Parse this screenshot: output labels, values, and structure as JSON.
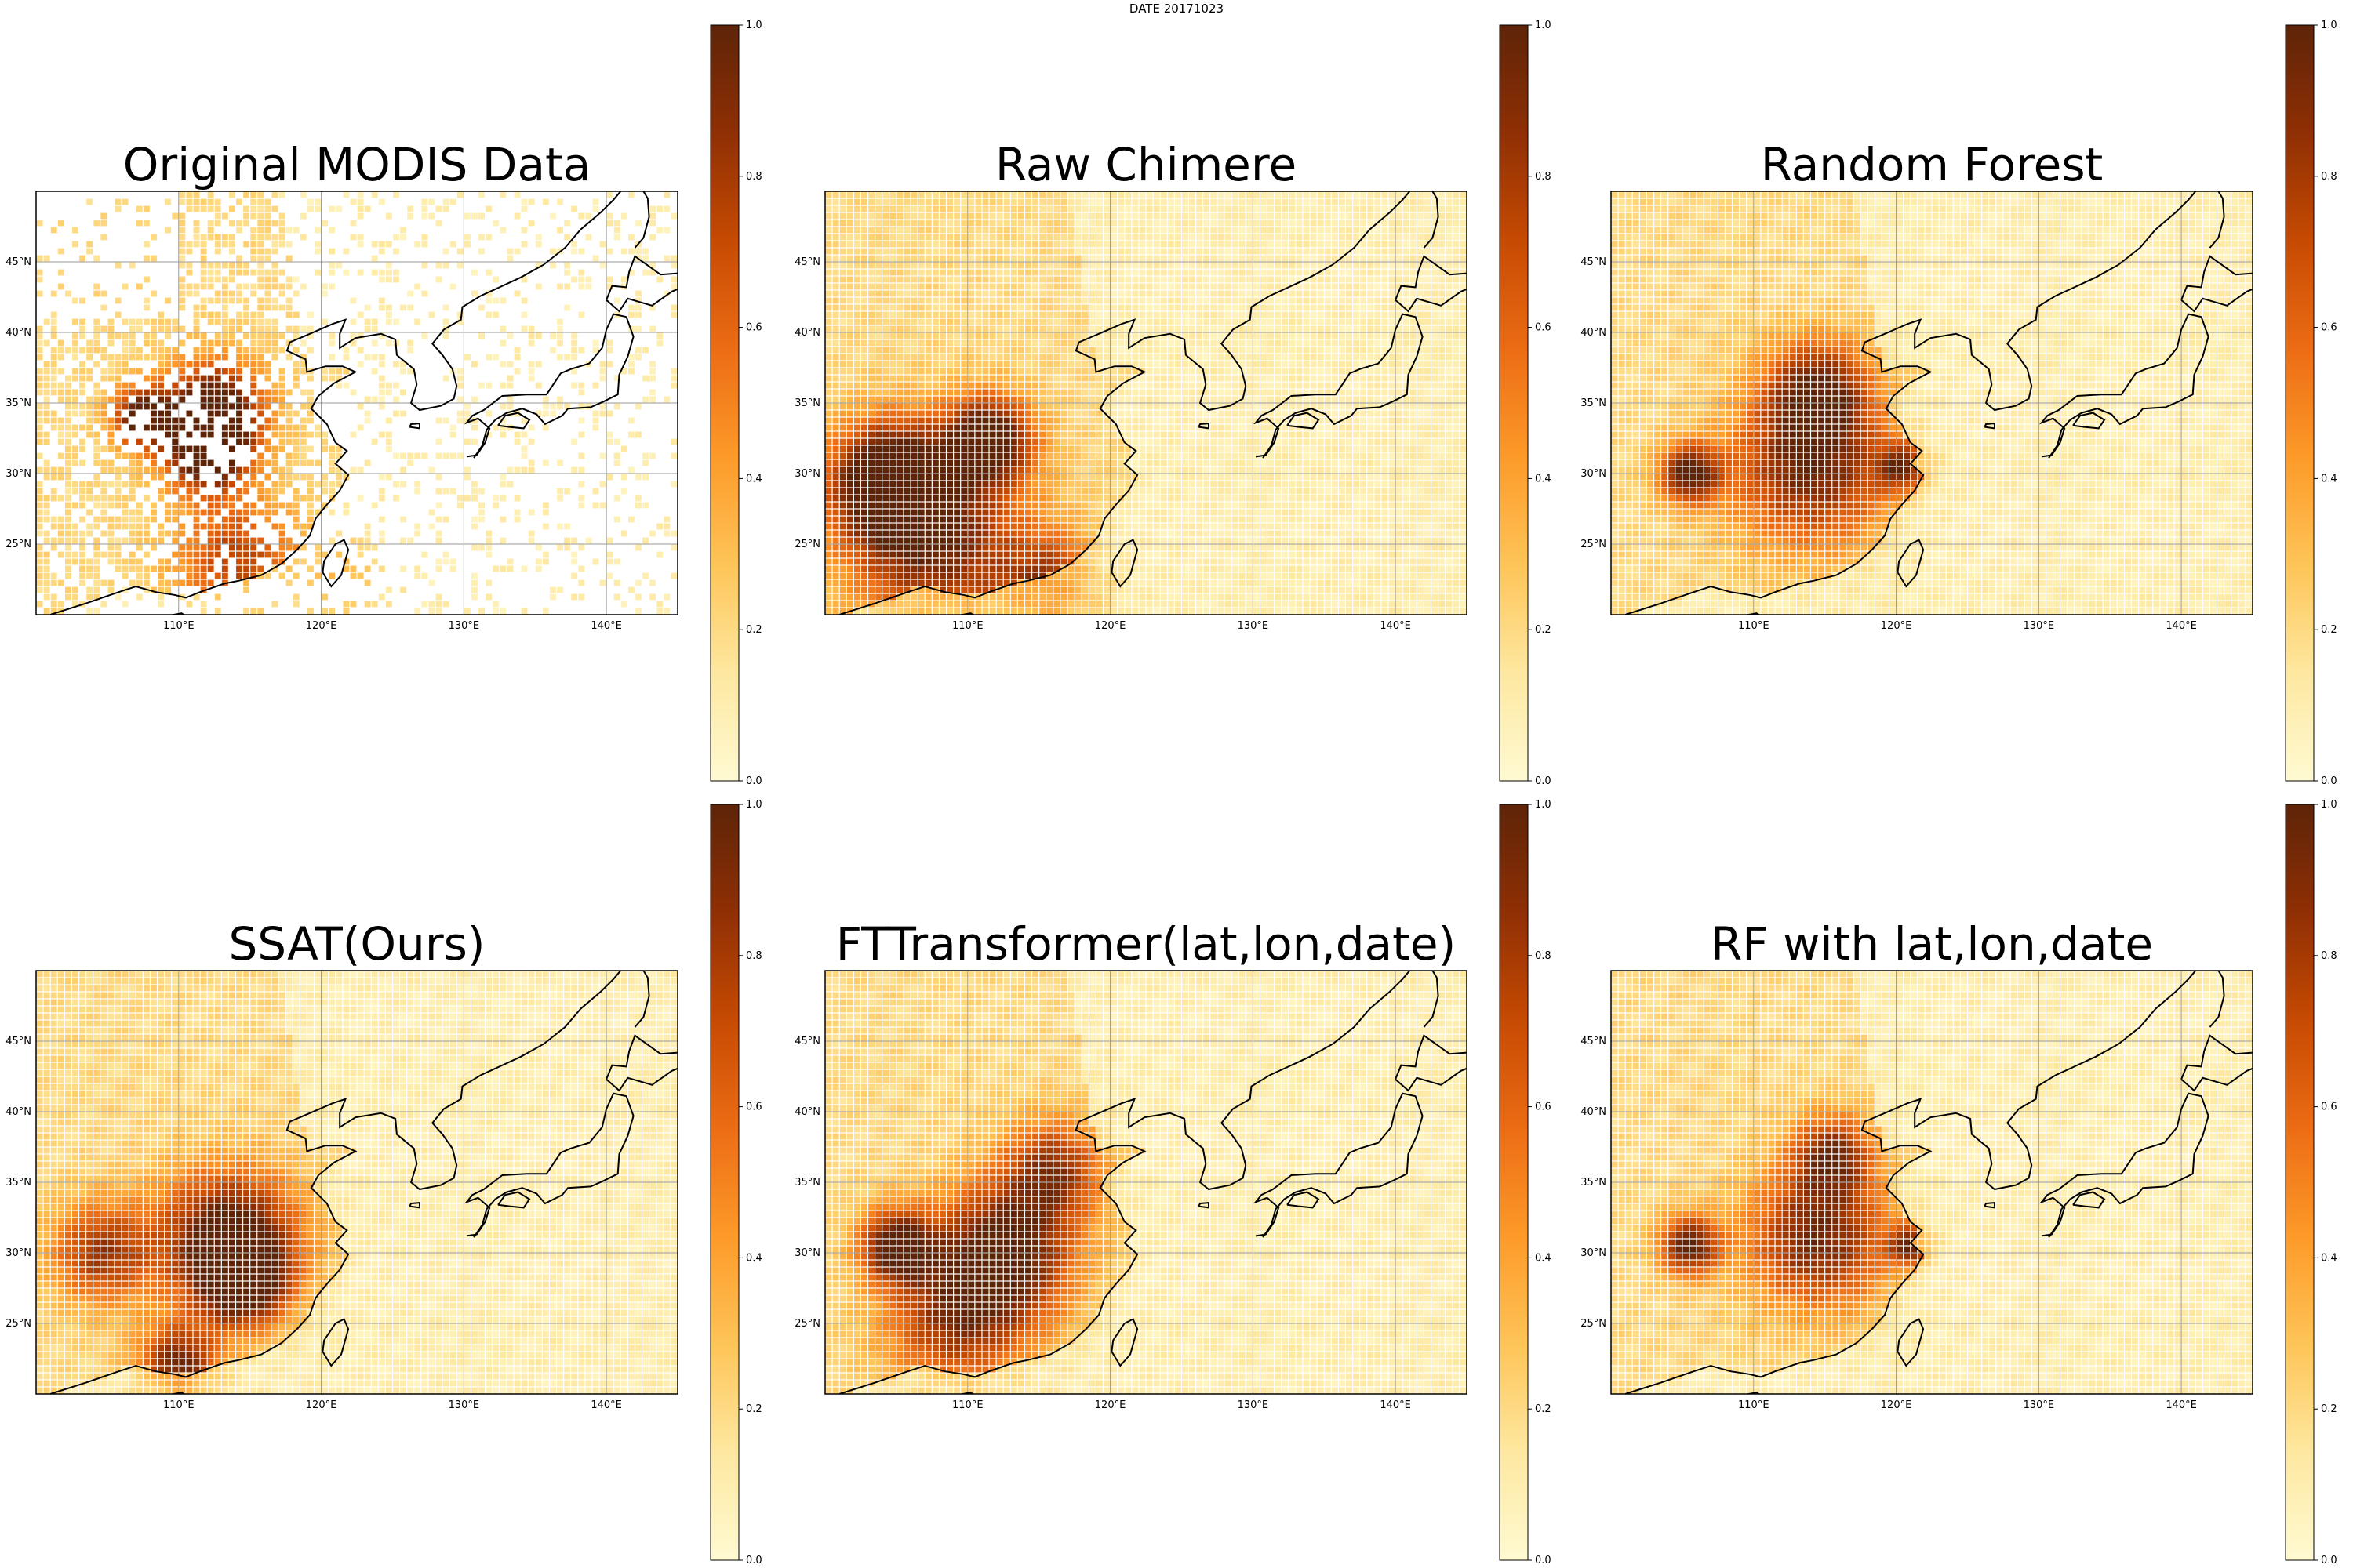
{
  "figure": {
    "suptitle": "DATE 20171023"
  },
  "colors": {
    "cmap": [
      "#fffad2",
      "#fee8a0",
      "#fec457",
      "#fd9a29",
      "#ec6c14",
      "#c64a02",
      "#8f2f04",
      "#5e2408"
    ],
    "coast": "#000000",
    "grid": "#9a9a9a"
  },
  "chart_data": [
    {
      "type": "heatmap",
      "title": "Original MODIS Data",
      "key": "modis",
      "xlim": [
        100,
        145
      ],
      "ylim": [
        20,
        50
      ],
      "xticks": [
        "110°E",
        "120°E",
        "130°E",
        "140°E"
      ],
      "yticks": [
        "45°N",
        "40°N",
        "35°N",
        "30°N",
        "25°N"
      ],
      "colorbar": {
        "vmin": 0,
        "vmax": 1,
        "ticks": [
          "0.0",
          "0.2",
          "0.4",
          "0.6",
          "0.8",
          "1.0"
        ]
      },
      "grid": true,
      "hotspots": [
        {
          "lon": 112.5,
          "lat": 34.5,
          "value": 0.98,
          "spread": 2.4
        },
        {
          "lon": 107.5,
          "lat": 34.0,
          "value": 0.9,
          "spread": 1.5
        },
        {
          "lon": 112.0,
          "lat": 31.5,
          "value": 0.85,
          "spread": 2.0
        },
        {
          "lon": 114.0,
          "lat": 24.0,
          "value": 0.55,
          "spread": 3.0
        },
        {
          "lon": 121.5,
          "lat": 22.5,
          "value": 0.5,
          "spread": 2.0
        }
      ],
      "missing_data": true
    },
    {
      "type": "heatmap",
      "title": "Raw Chimere",
      "key": "chimere",
      "xlim": [
        100,
        145
      ],
      "ylim": [
        20,
        50
      ],
      "xticks": [
        "110°E",
        "120°E",
        "130°E",
        "140°E"
      ],
      "yticks": [
        "45°N",
        "40°N",
        "35°N",
        "30°N",
        "25°N"
      ],
      "colorbar": {
        "vmin": 0,
        "vmax": 1,
        "ticks": [
          "0.0",
          "0.2",
          "0.4",
          "0.6",
          "0.8",
          "1.0"
        ]
      },
      "grid": true,
      "hotspots": [
        {
          "lon": 104.5,
          "lat": 29.5,
          "value": 0.95,
          "spread": 3.0
        },
        {
          "lon": 111.5,
          "lat": 32.5,
          "value": 0.9,
          "spread": 2.2
        },
        {
          "lon": 108.0,
          "lat": 25.0,
          "value": 0.7,
          "spread": 4.5
        },
        {
          "lon": 116.0,
          "lat": 22.0,
          "value": 0.55,
          "spread": 2.5
        }
      ],
      "missing_data": false
    },
    {
      "type": "heatmap",
      "title": "Random Forest",
      "key": "rf",
      "xlim": [
        100,
        145
      ],
      "ylim": [
        20,
        50
      ],
      "xticks": [
        "110°E",
        "120°E",
        "130°E",
        "140°E"
      ],
      "yticks": [
        "45°N",
        "40°N",
        "35°N",
        "30°N",
        "25°N"
      ],
      "colorbar": {
        "vmin": 0,
        "vmax": 1,
        "ticks": [
          "0.0",
          "0.2",
          "0.4",
          "0.6",
          "0.8",
          "1.0"
        ]
      },
      "grid": true,
      "hotspots": [
        {
          "lon": 105.5,
          "lat": 30.0,
          "value": 0.8,
          "spread": 1.5
        },
        {
          "lon": 114.0,
          "lat": 30.5,
          "value": 0.75,
          "spread": 4.0
        },
        {
          "lon": 114.5,
          "lat": 36.0,
          "value": 0.65,
          "spread": 2.5
        },
        {
          "lon": 120.5,
          "lat": 30.5,
          "value": 0.6,
          "spread": 1.2
        }
      ],
      "missing_data": false
    },
    {
      "type": "heatmap",
      "title": "SSAT(Ours)",
      "key": "ssat",
      "xlim": [
        100,
        145
      ],
      "ylim": [
        20,
        50
      ],
      "xticks": [
        "110°E",
        "120°E",
        "130°E",
        "140°E"
      ],
      "yticks": [
        "45°N",
        "40°N",
        "35°N",
        "30°N",
        "25°N"
      ],
      "colorbar": {
        "vmin": 0,
        "vmax": 1,
        "ticks": [
          "0.0",
          "0.2",
          "0.4",
          "0.6",
          "0.8",
          "1.0"
        ]
      },
      "grid": true,
      "hotspots": [
        {
          "lon": 113.5,
          "lat": 31.0,
          "value": 0.9,
          "spread": 3.5
        },
        {
          "lon": 114.5,
          "lat": 28.0,
          "value": 0.85,
          "spread": 2.0
        },
        {
          "lon": 104.5,
          "lat": 30.0,
          "value": 0.6,
          "spread": 2.5
        },
        {
          "lon": 110.0,
          "lat": 22.0,
          "value": 0.75,
          "spread": 2.0
        }
      ],
      "missing_data": false
    },
    {
      "type": "heatmap",
      "title": "FTTransformer(lat,lon,date)",
      "key": "ftt",
      "xlim": [
        100,
        145
      ],
      "ylim": [
        20,
        50
      ],
      "xticks": [
        "110°E",
        "120°E",
        "130°E",
        "140°E"
      ],
      "yticks": [
        "45°N",
        "40°N",
        "35°N",
        "30°N",
        "25°N"
      ],
      "colorbar": {
        "vmin": 0,
        "vmax": 1,
        "ticks": [
          "0.0",
          "0.2",
          "0.4",
          "0.6",
          "0.8",
          "1.0"
        ]
      },
      "grid": true,
      "hotspots": [
        {
          "lon": 105.0,
          "lat": 30.5,
          "value": 0.85,
          "spread": 1.8
        },
        {
          "lon": 112.5,
          "lat": 30.0,
          "value": 0.85,
          "spread": 3.5
        },
        {
          "lon": 116.0,
          "lat": 36.0,
          "value": 0.6,
          "spread": 2.5
        },
        {
          "lon": 109.0,
          "lat": 25.0,
          "value": 0.55,
          "spread": 3.5
        }
      ],
      "missing_data": false
    },
    {
      "type": "heatmap",
      "title": "RF with lat,lon,date",
      "key": "rfll",
      "xlim": [
        100,
        145
      ],
      "ylim": [
        20,
        50
      ],
      "xticks": [
        "110°E",
        "120°E",
        "130°E",
        "140°E"
      ],
      "yticks": [
        "45°N",
        "40°N",
        "35°N",
        "30°N",
        "25°N"
      ],
      "colorbar": {
        "vmin": 0,
        "vmax": 1,
        "ticks": [
          "0.0",
          "0.2",
          "0.4",
          "0.6",
          "0.8",
          "1.0"
        ]
      },
      "grid": true,
      "hotspots": [
        {
          "lon": 105.5,
          "lat": 30.5,
          "value": 0.8,
          "spread": 1.5
        },
        {
          "lon": 114.5,
          "lat": 31.0,
          "value": 0.75,
          "spread": 3.5
        },
        {
          "lon": 115.5,
          "lat": 37.0,
          "value": 0.65,
          "spread": 2.0
        },
        {
          "lon": 121.0,
          "lat": 30.5,
          "value": 0.7,
          "spread": 1.0
        }
      ],
      "missing_data": false
    }
  ]
}
